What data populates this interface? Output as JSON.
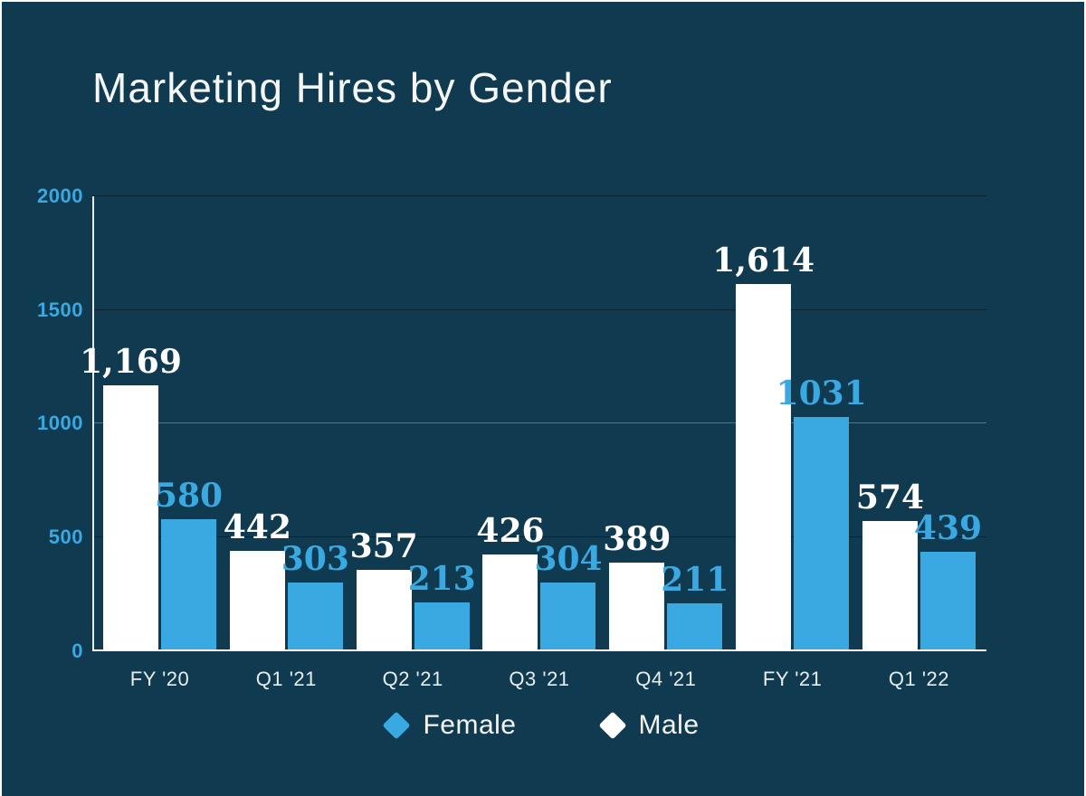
{
  "chart": {
    "title": "Marketing Hires by Gender",
    "legend": [
      {
        "label": "Female",
        "color": "#3aa9e2"
      },
      {
        "label": "Male",
        "color": "#ffffff"
      }
    ]
  },
  "colors": {
    "background": "#0f3a4f",
    "female_bar": "#3aa9e2",
    "male_bar": "#ffffff",
    "axis_tick_text": "#3aa9e2",
    "category_text": "#e9edef",
    "axis_line": "#ffffff",
    "grid_dark": "#0c2230",
    "grid_blue": "#3d7fa5"
  },
  "chart_data": {
    "type": "bar",
    "title": "Marketing Hires by Gender",
    "categories": [
      "FY '20",
      "Q1 '21",
      "Q2 '21",
      "Q3 '21",
      "Q4 '21",
      "FY '21",
      "Q1 '22"
    ],
    "series": [
      {
        "name": "Male",
        "color": "#ffffff",
        "values": [
          1169,
          442,
          357,
          426,
          389,
          1614,
          574
        ],
        "labels": [
          "1,169",
          "442",
          "357",
          "426",
          "389",
          "1,614",
          "574"
        ]
      },
      {
        "name": "Female",
        "color": "#3aa9e2",
        "values": [
          580,
          303,
          213,
          304,
          211,
          1031,
          439
        ],
        "labels": [
          "580",
          "303",
          "213",
          "304",
          "211",
          "1031",
          "439"
        ]
      }
    ],
    "ylim": [
      0,
      2000
    ],
    "yticks": [
      {
        "value": 0,
        "label": "0",
        "line_color": "#ffffff"
      },
      {
        "value": 500,
        "label": "500",
        "line_color": "#0c2230"
      },
      {
        "value": 1000,
        "label": "1000",
        "line_color": "#3d7fa5"
      },
      {
        "value": 1500,
        "label": "1500",
        "line_color": "#0c2230"
      },
      {
        "value": 2000,
        "label": "2000",
        "line_color": "#0c2230"
      }
    ],
    "grid": true,
    "legend_position": "bottom"
  }
}
